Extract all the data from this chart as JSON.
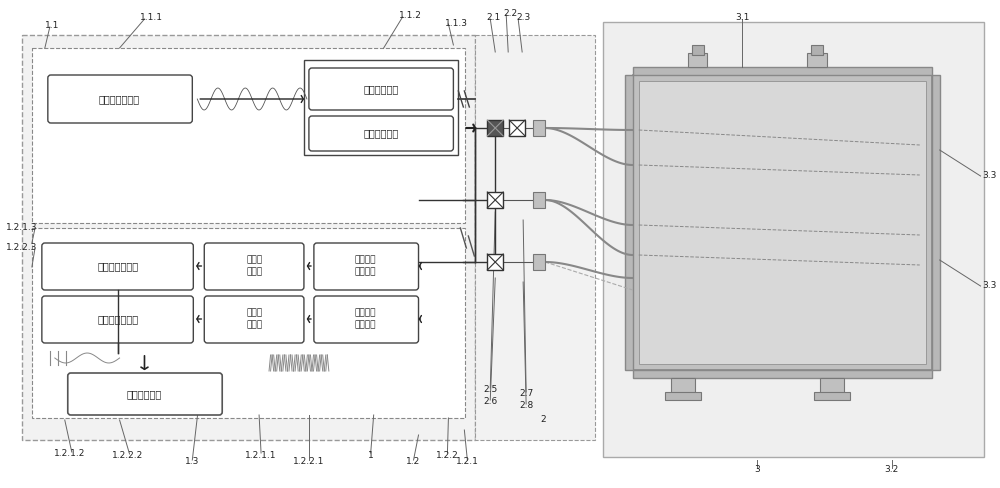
{
  "bg_color": "#ffffff",
  "box_fill": "#ffffff",
  "gray_fill": "#c8c8c8",
  "light_gray": "#d8d8d8",
  "chamber_body": "#c0c0c0",
  "chamber_inner": "#d4d4d4",
  "outer_box_color": "#aaaaaa",
  "labels": {
    "1_1": "1.1",
    "1_1_1": "1.1.1",
    "1_1_2": "1.1.2",
    "1_1_3": "1.1.3",
    "1_2_1_3": "1.2.1.3",
    "1_2_2_3": "1.2.2.3",
    "1_2_1_2": "1.2.1.2",
    "1_2_2_2": "1.2.2.2",
    "1_3": "1.3",
    "1_2_1_1": "1.2.1.1",
    "1_2_2_1": "1.2.2.1",
    "1": "1",
    "1_2": "1.2",
    "1_2_2": "1.2.2",
    "1_2_1": "1.2.1",
    "2_1": "2.1",
    "2_2": "2.2",
    "2_3": "2.3",
    "2_5": "2.5",
    "2_6": "2.6",
    "2_7": "2.7",
    "2_8": "2.8",
    "2": "2",
    "3_1": "3.1",
    "3_2": "3.2",
    "3_3a": "3.3",
    "3_3b": "3.3",
    "3": "3"
  },
  "box_labels": {
    "modulator": "调制波形发生器",
    "laser_driver": "激光驱动电路",
    "temp_ctrl": "数字温控模块",
    "lock1": "第一锁相放大器",
    "lock2": "第二锁相放大器",
    "filter1_l1": "第一滤",
    "filter1_l2": "波电路",
    "filter2_l1": "第二滤",
    "filter2_l2": "波电路",
    "preamp1_l1": "第一前置",
    "preamp1_l2": "放大电路",
    "preamp2_l1": "第二前置",
    "preamp2_l2": "放大电路",
    "data_proc": "数据处理单元"
  }
}
